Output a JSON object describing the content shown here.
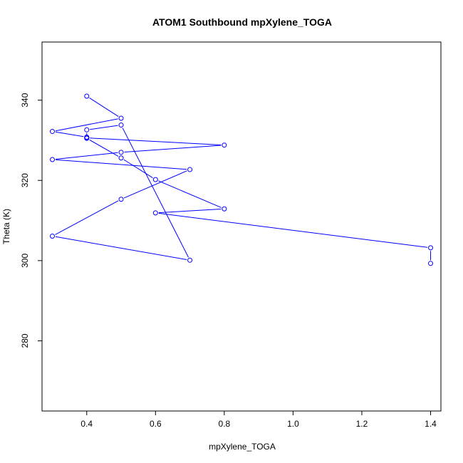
{
  "chart_data": {
    "type": "line",
    "title": "ATOM1 Southbound mpXylene_TOGA",
    "xlabel": "mpXylene_TOGA",
    "ylabel": "Theta (K)",
    "xlim": [
      0.27,
      1.43
    ],
    "ylim": [
      262.5,
      354.5
    ],
    "xticks": [
      "0.4",
      "0.6",
      "0.8",
      "1.0",
      "1.2",
      "1.4"
    ],
    "yticks": [
      "280",
      "300",
      "320",
      "340"
    ],
    "grid": false,
    "legend": "none",
    "colors": {
      "series": "#0000ff",
      "axes": "#000000"
    },
    "series": [
      {
        "marker": "open-circle",
        "points": [
          {
            "x": 0.4,
            "y": 341.0
          },
          {
            "x": 0.5,
            "y": 335.5
          },
          {
            "x": 0.3,
            "y": 332.2
          },
          {
            "x": 0.4,
            "y": 330.8
          },
          {
            "x": 0.4,
            "y": 330.6
          },
          {
            "x": 0.8,
            "y": 328.8
          },
          {
            "x": 0.5,
            "y": 327.0
          },
          {
            "x": 0.3,
            "y": 325.2
          },
          {
            "x": 0.7,
            "y": 322.7
          },
          {
            "x": 0.5,
            "y": 315.3
          },
          {
            "x": 0.3,
            "y": 306.1
          },
          {
            "x": 0.7,
            "y": 300.1
          },
          {
            "x": 0.5,
            "y": 333.8
          },
          {
            "x": 0.4,
            "y": 332.6
          },
          {
            "x": 0.4,
            "y": 330.5
          },
          {
            "x": 0.5,
            "y": 325.6
          },
          {
            "x": 0.6,
            "y": 320.2
          },
          {
            "x": 0.8,
            "y": 312.9
          },
          {
            "x": 0.6,
            "y": 311.9
          },
          {
            "x": 1.4,
            "y": 303.2
          },
          {
            "x": 1.4,
            "y": 299.3
          }
        ]
      }
    ]
  }
}
